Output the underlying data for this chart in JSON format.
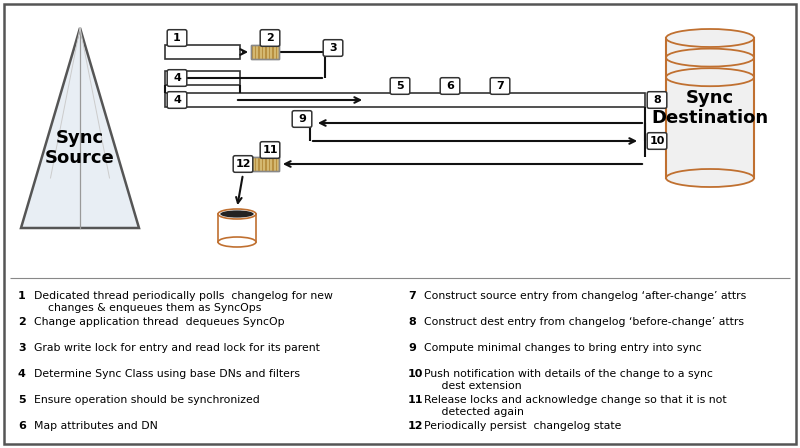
{
  "legend_items_col1": [
    {
      "num": "1",
      "text": "Dedicated thread periodically polls  changelog for new\n    changes & enqueues them as SyncOps"
    },
    {
      "num": "2",
      "text": "Change application thread  dequeues SyncOp"
    },
    {
      "num": "3",
      "text": "Grab write lock for entry and read lock for its parent"
    },
    {
      "num": "4",
      "text": "Determine Sync Class using base DNs and filters"
    },
    {
      "num": "5",
      "text": "Ensure operation should be synchronized"
    },
    {
      "num": "6",
      "text": "Map attributes and DN"
    }
  ],
  "legend_items_col2": [
    {
      "num": "7",
      "text": "Construct source entry from changelog ‘after-change’ attrs"
    },
    {
      "num": "8",
      "text": "Construct dest entry from changelog ‘before-change’ attrs"
    },
    {
      "num": "9",
      "text": "Compute minimal changes to bring entry into sync"
    },
    {
      "num": "10",
      "text": "Push notification with details of the change to a sync\n     dest extension"
    },
    {
      "num": "11",
      "text": "Release locks and acknowledge change so that it is not\n     detected again"
    },
    {
      "num": "12",
      "text": "Periodically persist  changelog state"
    }
  ],
  "pyramid_fill": "#e8eef4",
  "pyramid_edge": "#555555",
  "pyramid_line": "#aaaaaa",
  "cyl_fill": "#f0f0f0",
  "cyl_edge": "#c07030",
  "db_fill": "#ffffff",
  "db_edge": "#c07030",
  "db_top_fill": "#222222",
  "queue_fill": "#d4b870",
  "queue_stripe": "#b89040",
  "arrow_col": "#111111",
  "box_edge": "#444444",
  "border_col": "#555555",
  "divider_col": "#888888",
  "bg": "#ffffff"
}
